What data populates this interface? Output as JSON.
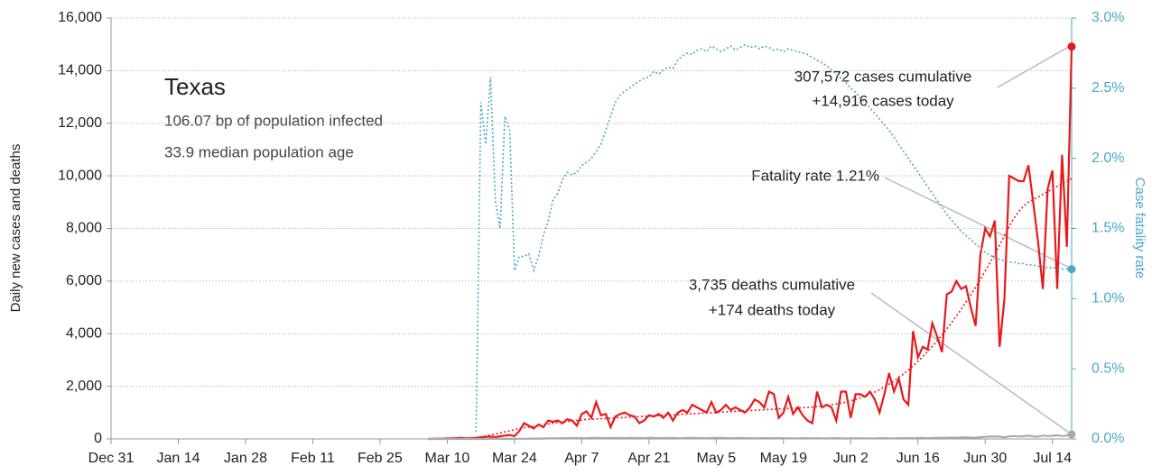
{
  "chart_data": {
    "type": "line",
    "title": "Texas",
    "subtitle": [
      "106.07 bp of population infected",
      "33.9 median population age"
    ],
    "ylabel": "Daily new cases and deaths",
    "y2label": "Case fatality rate",
    "annotations": [
      "307,572 cases cumulative",
      "+14,916 cases today",
      "Fatality rate 1.21%",
      "3,735 deaths cumulative",
      "+174 deaths today"
    ],
    "xlim": [
      0,
      200
    ],
    "xticks": [
      {
        "value": 0,
        "label": "Dec 31"
      },
      {
        "value": 14,
        "label": "Jan 14"
      },
      {
        "value": 28,
        "label": "Jan 28"
      },
      {
        "value": 42,
        "label": "Feb 11"
      },
      {
        "value": 56,
        "label": "Feb 25"
      },
      {
        "value": 70,
        "label": "Mar 10"
      },
      {
        "value": 84,
        "label": "Mar 24"
      },
      {
        "value": 98,
        "label": "Apr 7"
      },
      {
        "value": 112,
        "label": "Apr 21"
      },
      {
        "value": 126,
        "label": "May 5"
      },
      {
        "value": 140,
        "label": "May 19"
      },
      {
        "value": 154,
        "label": "Jun 2"
      },
      {
        "value": 168,
        "label": "Jun 16"
      },
      {
        "value": 182,
        "label": "Jun 30"
      },
      {
        "value": 196,
        "label": "Jul 14"
      }
    ],
    "ylim": [
      0,
      16000
    ],
    "yticks": [
      0,
      {
        "value": 2000,
        "label": "2,000"
      },
      {
        "value": 4000,
        "label": "4,000"
      },
      {
        "value": 6000,
        "label": "6,000"
      },
      {
        "value": 8000,
        "label": "8,000"
      },
      {
        "value": 10000,
        "label": "10,000"
      },
      {
        "value": 12000,
        "label": "12,000"
      },
      {
        "value": 14000,
        "label": "14,000"
      },
      {
        "value": 16000,
        "label": "16,000"
      }
    ],
    "y2lim": [
      0,
      3
    ],
    "y2ticks": [
      {
        "value": 0,
        "label": "0.0%"
      },
      {
        "value": 0.5,
        "label": "0.5%"
      },
      {
        "value": 1,
        "label": "1.0%"
      },
      {
        "value": 1.5,
        "label": "1.5%"
      },
      {
        "value": 2,
        "label": "2.0%"
      },
      {
        "value": 2.5,
        "label": "2.5%"
      },
      {
        "value": 3,
        "label": "3.0%"
      }
    ],
    "grid": true,
    "x": [
      66,
      67,
      68,
      69,
      70,
      71,
      72,
      73,
      74,
      75,
      76,
      77,
      78,
      79,
      80,
      81,
      82,
      83,
      84,
      85,
      86,
      87,
      88,
      89,
      90,
      91,
      92,
      93,
      94,
      95,
      96,
      97,
      98,
      99,
      100,
      101,
      102,
      103,
      104,
      105,
      106,
      107,
      108,
      109,
      110,
      111,
      112,
      113,
      114,
      115,
      116,
      117,
      118,
      119,
      120,
      121,
      122,
      123,
      124,
      125,
      126,
      127,
      128,
      129,
      130,
      131,
      132,
      133,
      134,
      135,
      136,
      137,
      138,
      139,
      140,
      141,
      142,
      143,
      144,
      145,
      146,
      147,
      148,
      149,
      150,
      151,
      152,
      153,
      154,
      155,
      156,
      157,
      158,
      159,
      160,
      161,
      162,
      163,
      164,
      165,
      166,
      167,
      168,
      169,
      170,
      171,
      172,
      173,
      174,
      175,
      176,
      177,
      178,
      179,
      180,
      181,
      182,
      183,
      184,
      185,
      186,
      187,
      188,
      189,
      190,
      191,
      192,
      193,
      194,
      195,
      196,
      197,
      198,
      199,
      200
    ],
    "series": [
      {
        "name": "New cases",
        "color": "#e8191c",
        "style": "solid",
        "axis": "y",
        "values": [
          0,
          5,
          10,
          10,
          20,
          20,
          30,
          40,
          20,
          30,
          40,
          60,
          80,
          90,
          70,
          100,
          130,
          150,
          110,
          300,
          600,
          500,
          400,
          550,
          450,
          700,
          650,
          700,
          600,
          750,
          700,
          500,
          950,
          1050,
          800,
          1400,
          900,
          950,
          450,
          850,
          950,
          1000,
          900,
          850,
          600,
          700,
          900,
          850,
          950,
          800,
          1000,
          700,
          1000,
          1100,
          1000,
          1300,
          1200,
          1100,
          1000,
          1400,
          1000,
          1100,
          1300,
          1100,
          1200,
          1100,
          1000,
          1200,
          1500,
          1400,
          1200,
          1800,
          1700,
          800,
          1000,
          1600,
          950,
          1200,
          900,
          700,
          600,
          1800,
          1200,
          1300,
          1200,
          700,
          1800,
          1800,
          800,
          1700,
          1700,
          1600,
          1800,
          1500,
          1000,
          1700,
          2500,
          1800,
          2300,
          1500,
          1300,
          4100,
          3100,
          3500,
          3400,
          4400,
          3900,
          3300,
          5500,
          5600,
          6000,
          5700,
          5800,
          5000,
          4300,
          7000,
          8000,
          7700,
          8300,
          3500,
          5300,
          10000,
          9900,
          9800,
          9800,
          10400,
          9000,
          7500,
          5700,
          9500,
          10200,
          5700,
          10800,
          7300,
          14916
        ]
      },
      {
        "name": "Cases trend",
        "color": "#e8191c",
        "style": "dotted",
        "axis": "y",
        "values": [
          null,
          null,
          null,
          null,
          null,
          null,
          null,
          null,
          null,
          null,
          50,
          80,
          110,
          150,
          190,
          230,
          270,
          310,
          350,
          390,
          420,
          450,
          480,
          510,
          540,
          570,
          600,
          620,
          640,
          660,
          680,
          700,
          720,
          740,
          750,
          760,
          770,
          780,
          790,
          800,
          810,
          820,
          830,
          840,
          850,
          860,
          870,
          880,
          890,
          900,
          910,
          920,
          930,
          940,
          950,
          960,
          970,
          980,
          990,
          1000,
          1010,
          1020,
          1030,
          1040,
          1050,
          1060,
          1070,
          1080,
          1090,
          1100,
          1110,
          1120,
          1130,
          1140,
          1150,
          1160,
          1170,
          1180,
          1190,
          1200,
          1210,
          1230,
          1250,
          1270,
          1300,
          1330,
          1360,
          1400,
          1450,
          1500,
          1560,
          1630,
          1700,
          1780,
          1870,
          1970,
          2080,
          2200,
          2330,
          2470,
          2620,
          2780,
          2950,
          3130,
          3320,
          3520,
          3730,
          3950,
          4180,
          4420,
          4670,
          4930,
          5200,
          5480,
          5770,
          6070,
          6380,
          6700,
          7030,
          7370,
          7720,
          8080,
          8400,
          8650,
          8850,
          9000,
          9100,
          9200,
          9300,
          9400,
          9500,
          9600,
          9700,
          9800,
          9900
        ]
      },
      {
        "name": "New deaths",
        "color": "#aaaaaa",
        "style": "solid",
        "axis": "y",
        "values": [
          0,
          0,
          0,
          0,
          0,
          0,
          0,
          0,
          0,
          0,
          0,
          1,
          1,
          2,
          2,
          3,
          4,
          5,
          5,
          6,
          8,
          10,
          12,
          15,
          18,
          20,
          22,
          25,
          28,
          30,
          32,
          30,
          35,
          28,
          40,
          38,
          33,
          30,
          35,
          42,
          38,
          30,
          36,
          40,
          34,
          28,
          45,
          38,
          32,
          30,
          36,
          42,
          30,
          28,
          38,
          45,
          32,
          30,
          26,
          34,
          40,
          36,
          30,
          28,
          32,
          38,
          30,
          26,
          22,
          30,
          34,
          28,
          26,
          30,
          32,
          24,
          22,
          20,
          28,
          30,
          22,
          26,
          20,
          18,
          24,
          30,
          20,
          18,
          22,
          26,
          20,
          24,
          22,
          18,
          26,
          30,
          24,
          20,
          28,
          32,
          30,
          26,
          34,
          40,
          28,
          36,
          42,
          48,
          40,
          50,
          44,
          56,
          60,
          52,
          48,
          66,
          80,
          90,
          96,
          84,
          60,
          100,
          110,
          94,
          106,
          120,
          98,
          86,
          130,
          110,
          120,
          140,
          110,
          130,
          174
        ]
      },
      {
        "name": "Case fatality rate",
        "color": "#4aa8c8",
        "style": "dotted",
        "axis": "y2",
        "values": [
          null,
          null,
          null,
          null,
          null,
          null,
          null,
          null,
          null,
          null,
          0.05,
          2.4,
          2.1,
          2.58,
          1.7,
          1.5,
          2.3,
          2.2,
          1.2,
          1.3,
          1.3,
          1.32,
          1.2,
          1.3,
          1.45,
          1.55,
          1.7,
          1.75,
          1.85,
          1.9,
          1.88,
          1.9,
          1.95,
          1.97,
          2.0,
          2.05,
          2.1,
          2.2,
          2.3,
          2.4,
          2.45,
          2.48,
          2.5,
          2.53,
          2.55,
          2.57,
          2.58,
          2.62,
          2.6,
          2.63,
          2.65,
          2.64,
          2.7,
          2.73,
          2.75,
          2.74,
          2.77,
          2.78,
          2.76,
          2.8,
          2.78,
          2.76,
          2.78,
          2.8,
          2.77,
          2.79,
          2.81,
          2.79,
          2.8,
          2.78,
          2.8,
          2.79,
          2.77,
          2.78,
          2.76,
          2.78,
          2.77,
          2.76,
          2.75,
          2.74,
          2.72,
          2.7,
          2.68,
          2.66,
          2.63,
          2.6,
          2.57,
          2.54,
          2.5,
          2.47,
          2.43,
          2.4,
          2.36,
          2.32,
          2.28,
          2.24,
          2.2,
          2.15,
          2.1,
          2.05,
          2.0,
          1.95,
          1.9,
          1.85,
          1.8,
          1.75,
          1.7,
          1.65,
          1.6,
          1.56,
          1.52,
          1.48,
          1.45,
          1.42,
          1.39,
          1.36,
          1.33,
          1.31,
          1.29,
          1.28,
          1.27,
          1.26,
          1.26,
          1.25,
          1.25,
          1.24,
          1.24,
          1.23,
          1.23,
          1.22,
          1.22,
          1.22,
          1.21,
          1.21,
          1.21
        ]
      }
    ]
  }
}
